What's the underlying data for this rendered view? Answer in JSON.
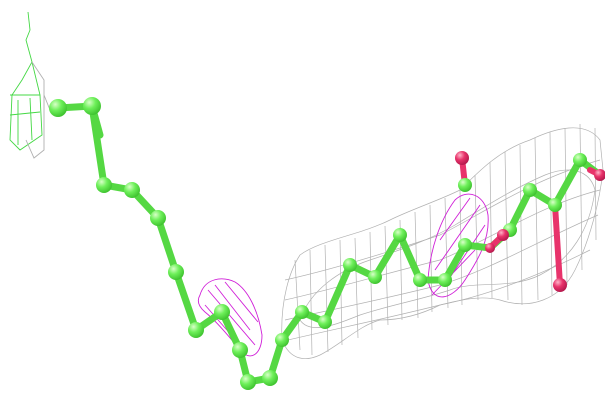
{
  "scene": {
    "kind": "molecular-structure-render",
    "background": "#ffffff",
    "colors": {
      "carbon_atoms": "#6ef05a",
      "carbon_highlight": "#b8ff9e",
      "oxygen_atoms": "#e8336b",
      "density_mesh_gray": "#a9a9a9",
      "density_mesh_magenta": "#d020d8",
      "fragment_wire_green": "#44d844"
    },
    "icons": {
      "atom": "sphere",
      "bond": "cylinder",
      "density": "wireframe-mesh"
    }
  }
}
